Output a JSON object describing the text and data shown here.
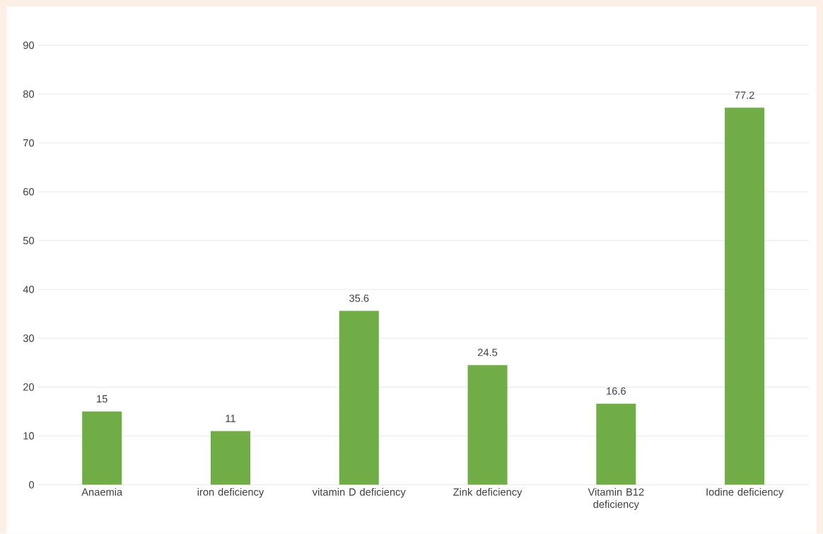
{
  "chart_data": {
    "type": "bar",
    "categories": [
      "Anaemia",
      "iron deficiency",
      "vitamin D deficiency",
      "Zink deficiency",
      "Vitamin B12 deficiency",
      "Iodine deficiency"
    ],
    "values": [
      15,
      11,
      35.6,
      24.5,
      16.6,
      77.2
    ],
    "color": "#70ad47",
    "ylim": [
      0,
      90
    ],
    "yticks": [
      0,
      10,
      20,
      30,
      40,
      50,
      60,
      70,
      80,
      90
    ],
    "grid": "y",
    "data_labels": true
  }
}
